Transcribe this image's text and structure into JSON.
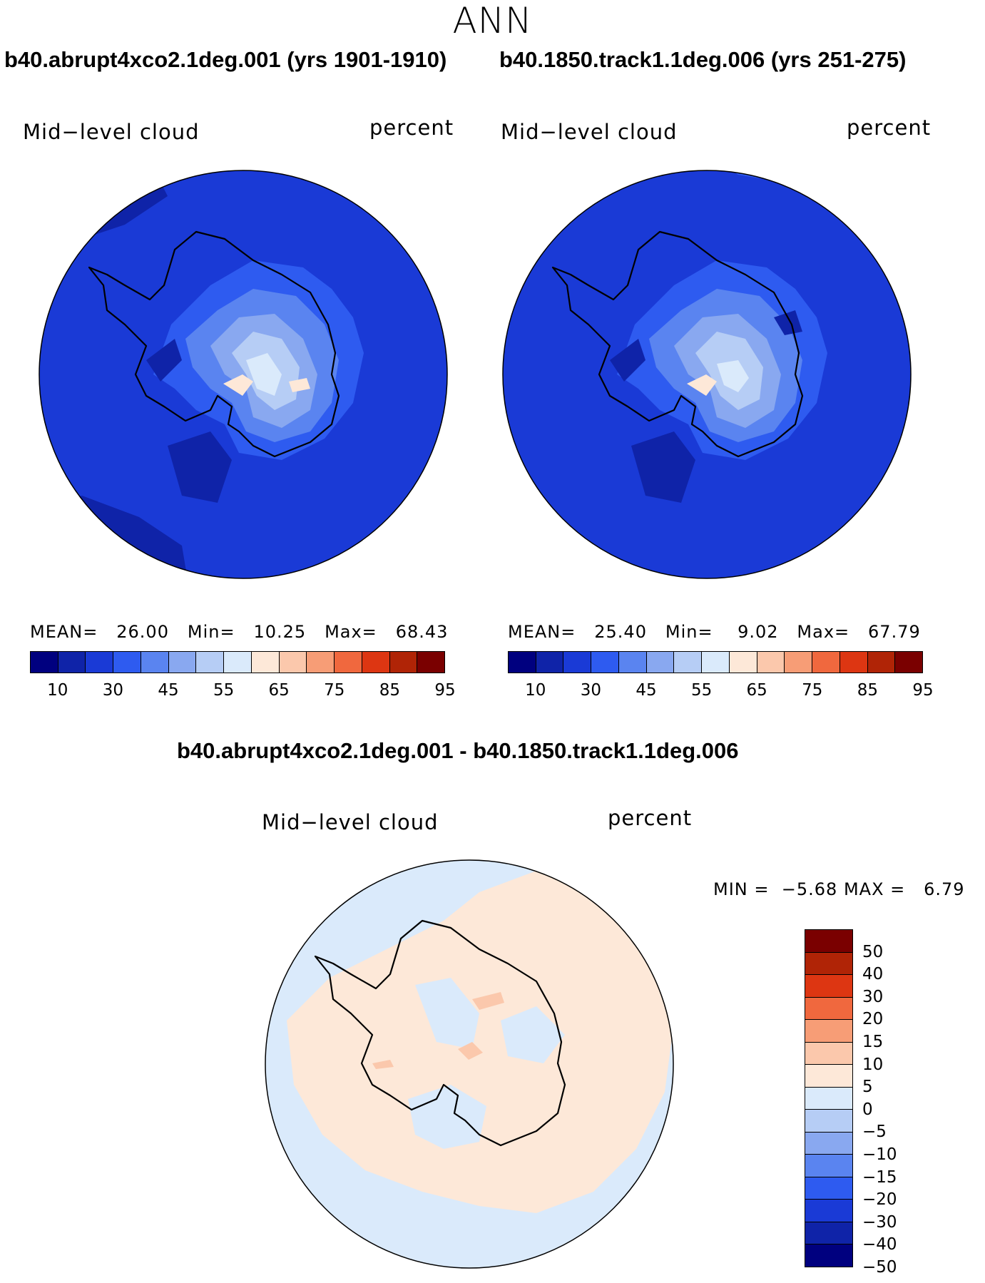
{
  "title": "ANN",
  "panels": [
    {
      "case_title": "b40.abrupt4xco2.1deg.001 (yrs 1901-1910)",
      "variable": "Mid−level cloud",
      "units": "percent",
      "mean_label": "MEAN=",
      "mean": "26.00",
      "min_label": "Min=",
      "min": "10.25",
      "max_label": "Max=",
      "max": "68.43"
    },
    {
      "case_title": "b40.1850.track1.1deg.006 (yrs 251-275)",
      "variable": "Mid−level cloud",
      "units": "percent",
      "mean_label": "MEAN=",
      "mean": "25.40",
      "min_label": "Min=",
      "min": "9.02",
      "max_label": "Max=",
      "max": "67.79"
    }
  ],
  "diff_panel": {
    "title": "b40.abrupt4xco2.1deg.001 - b40.1850.track1.1deg.006",
    "variable": "Mid−level cloud",
    "units": "percent",
    "min_label": "MIN =",
    "min": "−5.68",
    "max_label": "MAX =",
    "max": "6.79"
  },
  "abs_colorbar": {
    "colors": [
      "#00007f",
      "#0f23a8",
      "#1a3ad6",
      "#2e5bf0",
      "#5a84f0",
      "#89a8f0",
      "#b6cdf5",
      "#daeafb",
      "#fde8d8",
      "#fbc8ac",
      "#f79d76",
      "#f0683e",
      "#dd3612",
      "#b02406",
      "#7a0000"
    ],
    "tick_labels": [
      "10",
      "30",
      "45",
      "55",
      "65",
      "75",
      "85",
      "95"
    ]
  },
  "diff_colorbar": {
    "colors": [
      "#7a0000",
      "#b02406",
      "#dd3612",
      "#f0683e",
      "#f79d76",
      "#fbc8ac",
      "#fde8d8",
      "#daeafb",
      "#b6cdf5",
      "#89a8f0",
      "#5a84f0",
      "#2e5bf0",
      "#1a3ad6",
      "#0f23a8",
      "#00007f"
    ],
    "labels": [
      "50",
      "40",
      "30",
      "20",
      "15",
      "10",
      "5",
      "0",
      "−5",
      "−10",
      "−15",
      "−20",
      "−30",
      "−40",
      "−50"
    ]
  }
}
